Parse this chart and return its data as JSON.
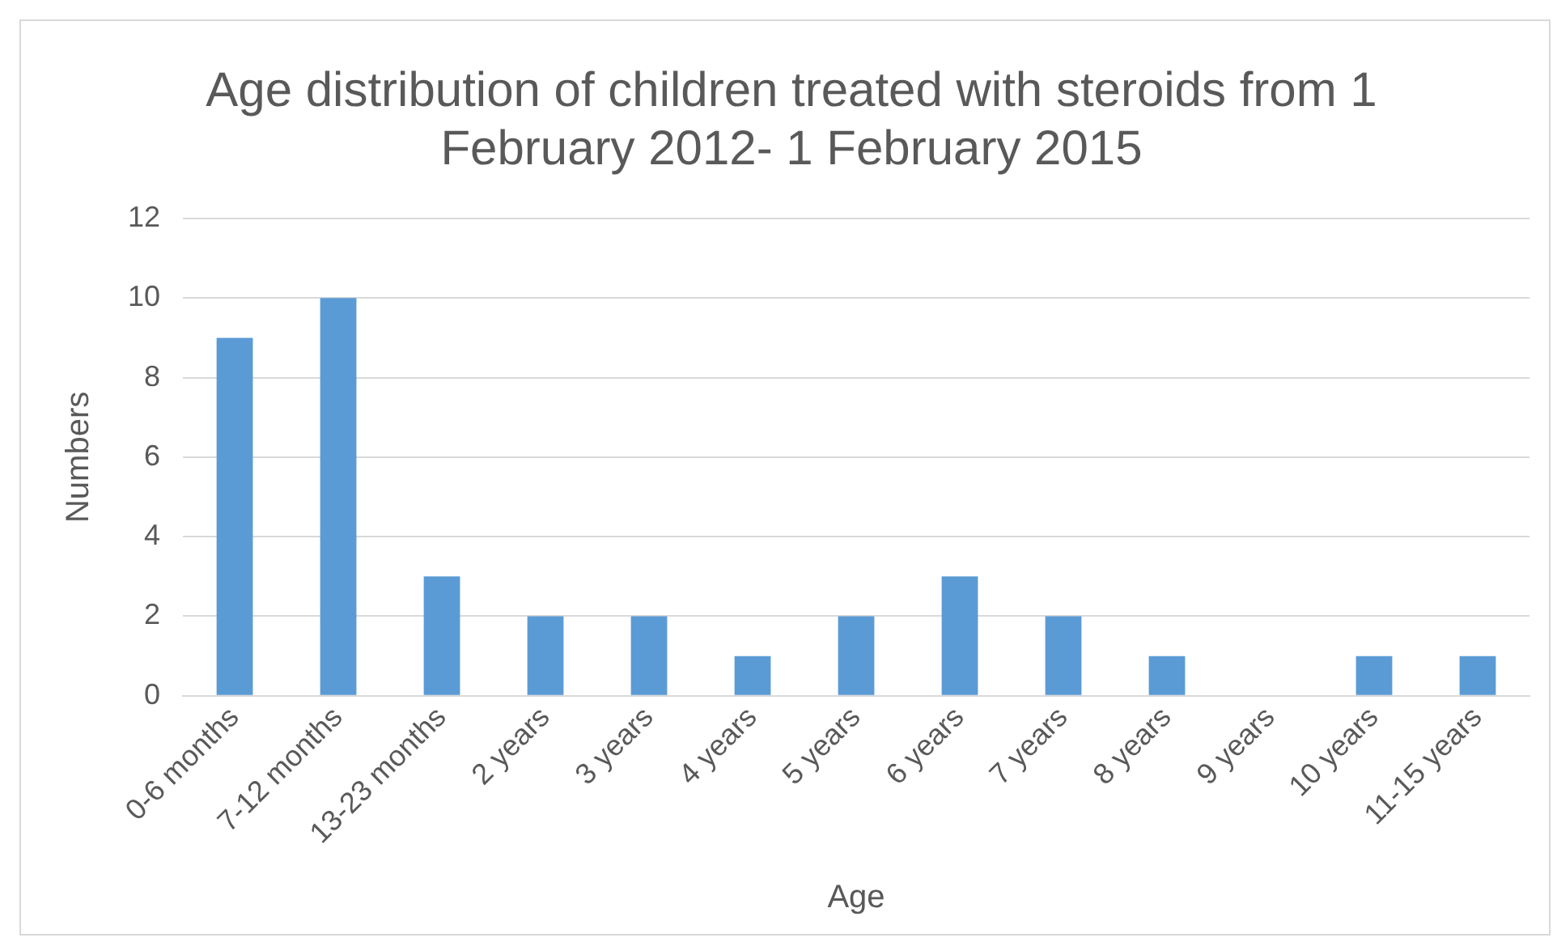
{
  "chart_data": {
    "type": "bar",
    "title": "Age distribution of children treated with steroids from 1 February 2012- 1 February 2015",
    "xlabel": "Age",
    "ylabel": "Numbers",
    "categories": [
      "0-6 months",
      "7-12 months",
      "13-23 months",
      "2 years",
      "3 years",
      "4 years",
      "5 years",
      "6 years",
      "7 years",
      "8 years",
      "9 years",
      "10 years",
      "11-15 years"
    ],
    "values": [
      9,
      10,
      3,
      2,
      2,
      1,
      2,
      3,
      2,
      1,
      0,
      1,
      1
    ],
    "color": "#5b9bd5",
    "ylim": [
      0,
      12
    ],
    "yticks": [
      0,
      2,
      4,
      6,
      8,
      10,
      12
    ],
    "grid": "y",
    "legend": false
  }
}
